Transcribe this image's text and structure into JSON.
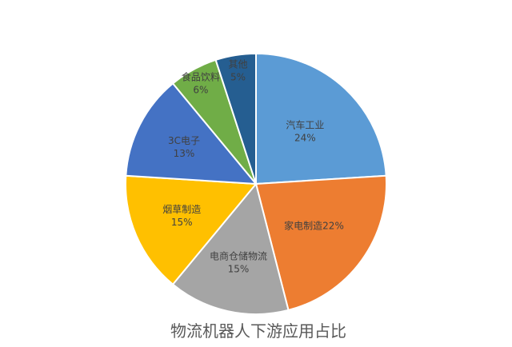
{
  "chart_data": {
    "type": "pie",
    "title": "物流机器人下游应用占比",
    "categories": [
      "汽车工业",
      "家电制造",
      "电商仓储物流",
      "烟草制造",
      "3C电子",
      "食品饮料",
      "其他"
    ],
    "values": [
      24,
      22,
      15,
      15,
      13,
      6,
      5
    ],
    "unit": "%",
    "labels": [
      [
        "汽车工业",
        "24%"
      ],
      [
        "家电制造22%"
      ],
      [
        "电商仓储物流",
        "15%"
      ],
      [
        "烟草制造",
        "15%"
      ],
      [
        "3C电子",
        "13%"
      ],
      [
        "食品饮料",
        "6%"
      ],
      [
        "其他",
        "5%"
      ]
    ],
    "colors": [
      "#5B9BD5",
      "#ED7D31",
      "#A5A5A5",
      "#FFC000",
      "#4472C4",
      "#70AD47",
      "#255E91"
    ],
    "legend": "none"
  }
}
